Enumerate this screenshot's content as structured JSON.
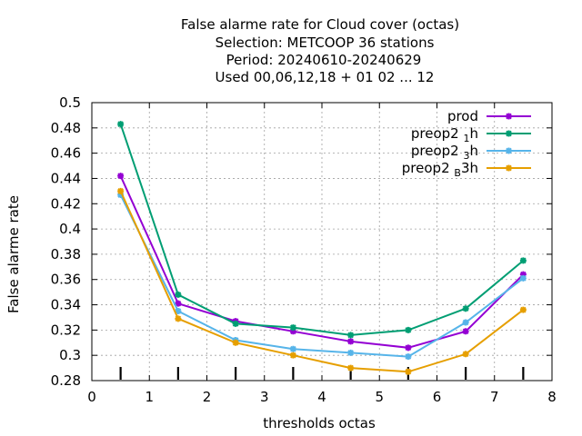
{
  "chart_data": {
    "type": "line",
    "title_lines": [
      "False alarme rate  for Cloud cover (octas)",
      "Selection: METCOOP     36 stations",
      "Period: 20240610-20240629",
      "Used  00,06,12,18 + 01 02 ... 12"
    ],
    "xlabel": "thresholds octas",
    "ylabel": "False alarme rate",
    "xlim": [
      0,
      8
    ],
    "ylim": [
      0.28,
      0.5
    ],
    "xticks": [
      0,
      1,
      2,
      3,
      4,
      5,
      6,
      7,
      8
    ],
    "yticks": [
      0.28,
      0.3,
      0.32,
      0.34,
      0.36,
      0.38,
      0.4,
      0.42,
      0.44,
      0.46,
      0.48,
      0.5
    ],
    "xtick_labels": [
      "0",
      "1",
      "2",
      "3",
      "4",
      "5",
      "6",
      "7",
      "8"
    ],
    "ytick_labels": [
      "0.28",
      "0.3",
      "0.32",
      "0.34",
      "0.36",
      "0.38",
      "0.4",
      "0.42",
      "0.44",
      "0.46",
      "0.48",
      "0.5"
    ],
    "x": [
      0.5,
      1.5,
      2.5,
      3.5,
      4.5,
      5.5,
      6.5,
      7.5
    ],
    "legend_position": "top-right",
    "grid": true,
    "series": [
      {
        "name": "prod",
        "legend_main": "prod",
        "legend_sub": "",
        "legend_tail": "",
        "color": "#9400d3",
        "values": [
          0.442,
          0.341,
          0.327,
          0.319,
          0.311,
          0.306,
          0.319,
          0.364
        ]
      },
      {
        "name": "preop2 1 h",
        "legend_main": "preop2 ",
        "legend_sub": "1",
        "legend_tail": "h",
        "color": "#009e73",
        "values": [
          0.483,
          0.348,
          0.325,
          0.322,
          0.316,
          0.32,
          0.337,
          0.375
        ]
      },
      {
        "name": "preop2 3 h",
        "legend_main": "preop2 ",
        "legend_sub": "3",
        "legend_tail": "h",
        "color": "#56b4e9",
        "values": [
          0.427,
          0.335,
          0.312,
          0.305,
          0.302,
          0.299,
          0.326,
          0.361
        ]
      },
      {
        "name": "preop2 B 3h",
        "legend_main": "preop2 ",
        "legend_sub": "B",
        "legend_tail": "3h",
        "color": "#e69f00",
        "values": [
          0.43,
          0.329,
          0.31,
          0.3,
          0.29,
          0.287,
          0.301,
          0.336
        ]
      }
    ]
  }
}
